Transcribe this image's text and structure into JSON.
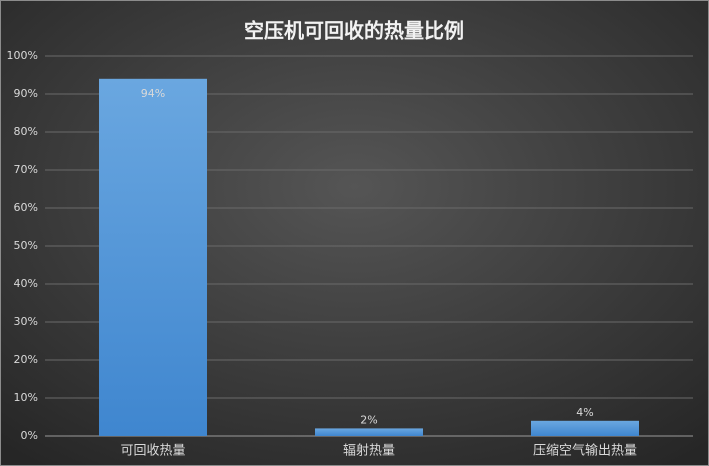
{
  "chart_data": {
    "type": "bar",
    "title": "空压机可回收的热量比例",
    "categories": [
      "可回收热量",
      "辐射热量",
      "压缩空气输出热量"
    ],
    "values": [
      94,
      2,
      4
    ],
    "value_labels": [
      "94%",
      "2%",
      "4%"
    ],
    "color": "#5b9bd5",
    "ylim": [
      0,
      100
    ],
    "yticks": [
      {
        "value": 0,
        "label": "0%"
      },
      {
        "value": 10,
        "label": "10%"
      },
      {
        "value": 20,
        "label": "20%"
      },
      {
        "value": 30,
        "label": "30%"
      },
      {
        "value": 40,
        "label": "40%"
      },
      {
        "value": 50,
        "label": "50%"
      },
      {
        "value": 60,
        "label": "60%"
      },
      {
        "value": 70,
        "label": "70%"
      },
      {
        "value": 80,
        "label": "80%"
      },
      {
        "value": 90,
        "label": "90%"
      },
      {
        "value": 100,
        "label": "100%"
      }
    ],
    "grid": true
  }
}
